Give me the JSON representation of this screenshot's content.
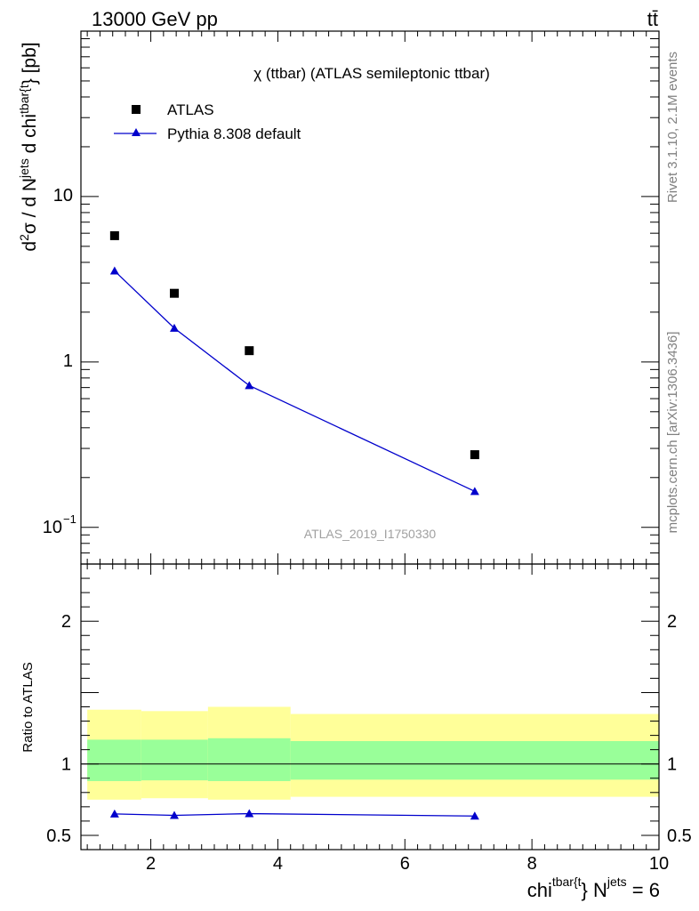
{
  "header": {
    "energy_label": "13000 GeV pp",
    "process_label": "tt̄"
  },
  "side_labels": {
    "rivet": "Rivet 3.1.10,  2.1M events",
    "mcplots": "mcplots.cern.ch [arXiv:1306.3436]"
  },
  "watermark": "ATLAS_2019_I1750330",
  "chart_data": [
    {
      "type": "scatter",
      "title": "χ (ttbar) (ATLAS semileptonic ttbar)",
      "ylabel_parts": {
        "a": "d",
        "a_sup": "2",
        "b": "σ /  d N",
        "b_sup": "jets",
        "c": " d chi",
        "c_sup": "tbar{t",
        "d": "} [pb]"
      },
      "yscale": "log",
      "ylim": [
        0.06,
        100
      ],
      "xlim": [
        0.9,
        10
      ],
      "ytick_labels": {
        "t10": "10",
        "t1": "1",
        "t01_base": "10",
        "t01_exp": "−1"
      },
      "legend_position": "top-left",
      "series": [
        {
          "name": "ATLAS",
          "color": "#000000",
          "marker": "square",
          "x": [
            1.43,
            2.37,
            3.55,
            7.1
          ],
          "y": [
            5.8,
            2.6,
            1.17,
            0.275
          ]
        },
        {
          "name": "Pythia 8.308 default",
          "color": "#0000cc",
          "marker": "triangle",
          "x": [
            1.43,
            2.37,
            3.55,
            7.1
          ],
          "y": [
            3.55,
            1.6,
            0.72,
            0.165
          ]
        }
      ]
    },
    {
      "type": "line",
      "ylabel": "Ratio to ATLAS",
      "ylim": [
        0.4,
        2.4
      ],
      "xlim": [
        0.9,
        10
      ],
      "yticks": [
        {
          "value": 0.5,
          "label": "0.5"
        },
        {
          "value": 1,
          "label": "1"
        },
        {
          "value": 2,
          "label": "2"
        }
      ],
      "xticks": [
        {
          "value": 2,
          "label": "2"
        },
        {
          "value": 4,
          "label": "4"
        },
        {
          "value": 6,
          "label": "6"
        },
        {
          "value": 8,
          "label": "8"
        },
        {
          "value": 10,
          "label": "10"
        }
      ],
      "xlabel_parts": {
        "a": "chi",
        "a_sup": "tbar{t",
        "b": "} N",
        "b_sup": "jets",
        "c": " = 6"
      },
      "bands": [
        {
          "x0": 1.0,
          "x1": 1.85,
          "yellow": [
            0.75,
            1.38
          ],
          "green": [
            0.88,
            1.17
          ]
        },
        {
          "x0": 1.85,
          "x1": 2.9,
          "yellow": [
            0.76,
            1.37
          ],
          "green": [
            0.885,
            1.17
          ]
        },
        {
          "x0": 2.9,
          "x1": 4.2,
          "yellow": [
            0.75,
            1.4
          ],
          "green": [
            0.88,
            1.18
          ]
        },
        {
          "x0": 4.2,
          "x1": 10.0,
          "yellow": [
            0.77,
            1.35
          ],
          "green": [
            0.89,
            1.16
          ]
        }
      ],
      "series": [
        {
          "name": "Pythia 8.308 default",
          "color": "#0000cc",
          "x": [
            1.43,
            2.37,
            3.55,
            7.1
          ],
          "y": [
            0.65,
            0.64,
            0.652,
            0.635
          ]
        }
      ]
    }
  ],
  "colors": {
    "yellow_band": "#ffff99",
    "green_band": "#99ff99",
    "mc": "#0000cc",
    "data": "#000000"
  }
}
